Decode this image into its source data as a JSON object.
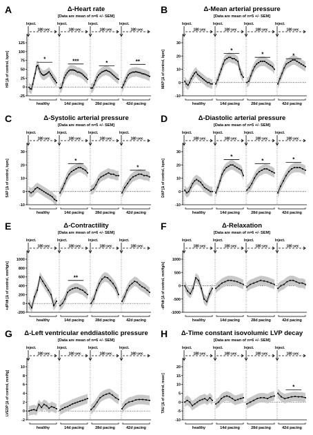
{
  "chart_data": [
    {
      "letter": "A",
      "title": "Δ-Heart rate",
      "subtitle": "[Data are mean of n=6 +/- SEM]",
      "type": "line",
      "ylabel": "HR [Δ of control, bpm]",
      "yticks": [
        "125",
        "100",
        "75",
        "50",
        "25",
        "0",
        "-25"
      ],
      "ylim": [
        -25,
        125
      ],
      "groups": [
        "healthy",
        "14d pacing",
        "28d pacing",
        "42d pacing"
      ],
      "inject_label": "Inject.",
      "interval_label": "180 sec",
      "means": [
        [
          -1,
          -5,
          -6,
          8,
          25,
          38,
          58,
          61,
          52,
          42,
          37,
          34,
          33,
          35,
          37,
          40,
          43,
          38,
          33,
          27,
          22,
          17,
          12
        ],
        [
          -3,
          -2,
          12,
          26,
          34,
          40,
          45,
          48,
          48,
          48,
          47,
          45,
          42,
          42,
          40,
          38,
          34,
          30,
          26,
          22
        ],
        [
          -3,
          -3,
          6,
          18,
          28,
          34,
          38,
          42,
          44,
          46,
          47,
          45,
          43,
          40,
          36,
          32,
          28,
          24,
          22
        ],
        [
          -2,
          6,
          16,
          26,
          34,
          38,
          40,
          42,
          42,
          43,
          42,
          41,
          40,
          38,
          37,
          36,
          34,
          32,
          30
        ]
      ],
      "sig": [
        {
          "group": 0,
          "label": "*",
          "y": 70
        },
        {
          "group": 1,
          "label": "***",
          "y": 65
        },
        {
          "group": 2,
          "label": "*",
          "y": 60
        },
        {
          "group": 3,
          "label": "**",
          "y": 64
        }
      ]
    },
    {
      "letter": "B",
      "title": "Δ-Mean arterial pressure",
      "subtitle": "[Data are mean of n=5 +/- SEM]",
      "type": "line",
      "ylabel": "MAP [Δ of control, bpm]",
      "yticks": [
        "30",
        "20",
        "10",
        "0",
        "-10"
      ],
      "ylim": [
        -10,
        30
      ],
      "groups": [
        "healthy",
        "14d pacing",
        "28d pacing",
        "42d pacing"
      ],
      "inject_label": "Inject.",
      "interval_label": "180 sec",
      "means": [
        [
          1,
          -1,
          -2,
          0,
          3,
          5,
          7,
          8,
          6,
          5,
          4,
          3,
          2,
          1,
          0,
          0,
          -1,
          -1
        ],
        [
          -1,
          2,
          6,
          10,
          14,
          17,
          18,
          19,
          19,
          18,
          18,
          17,
          16,
          10,
          6,
          4
        ],
        [
          0,
          1,
          5,
          9,
          12,
          14,
          15,
          16,
          16,
          16,
          15,
          14,
          13,
          12,
          10
        ],
        [
          -1,
          3,
          7,
          11,
          14,
          15,
          16,
          17,
          17,
          16,
          15,
          14,
          13,
          12
        ]
      ],
      "sig": [
        {
          "group": 1,
          "label": "*",
          "y": 22
        },
        {
          "group": 2,
          "label": "*",
          "y": 19
        },
        {
          "group": 3,
          "label": "*",
          "y": 18
        }
      ]
    },
    {
      "letter": "C",
      "title": "Δ-Systolic arterial pressure",
      "subtitle": "[Data are mean of n=5 +/- SEM]",
      "type": "line",
      "ylabel": "SAP [Δ of control, bpm]",
      "yticks": [
        "30",
        "20",
        "10",
        "0",
        "-10"
      ],
      "ylim": [
        -10,
        30
      ],
      "groups": [
        "healthy",
        "14d pacing",
        "28d pacing",
        "42d pacing"
      ],
      "inject_label": "Inject.",
      "interval_label": "180 sec",
      "means": [
        [
          0,
          -1,
          0,
          2,
          3,
          2,
          1,
          0,
          -1,
          -2,
          -3,
          -4,
          -6,
          -7
        ],
        [
          -1,
          2,
          6,
          10,
          13,
          15,
          16,
          17,
          18,
          18,
          17,
          16,
          14
        ],
        [
          1,
          2,
          5,
          9,
          11,
          12,
          13,
          14,
          13,
          13,
          12,
          12
        ],
        [
          -1,
          3,
          6,
          9,
          11,
          12,
          13,
          13,
          12,
          12,
          11
        ]
      ],
      "sig": [
        {
          "group": 1,
          "label": "*",
          "y": 21
        },
        {
          "group": 3,
          "label": "*",
          "y": 16
        }
      ]
    },
    {
      "letter": "D",
      "title": "Δ-Diastolic arterial pressure",
      "subtitle": "[Data are mean of n=5 +/- SEM]",
      "type": "line",
      "ylabel": "DAP [Δ of control, bpm]",
      "yticks": [
        "30",
        "20",
        "10",
        "0",
        "-10"
      ],
      "ylim": [
        -10,
        30
      ],
      "groups": [
        "healthy",
        "14d pacing",
        "28d pacing",
        "42d pacing"
      ],
      "inject_label": "Inject.",
      "interval_label": "180 sec",
      "means": [
        [
          1,
          -1,
          0,
          3,
          6,
          8,
          9,
          8,
          7,
          5,
          3,
          2,
          1,
          0,
          0
        ],
        [
          -1,
          3,
          8,
          13,
          16,
          18,
          19,
          20,
          20,
          19,
          18,
          17,
          16,
          12
        ],
        [
          1,
          3,
          6,
          10,
          13,
          15,
          16,
          17,
          17,
          16,
          15,
          14
        ],
        [
          -1,
          4,
          8,
          12,
          15,
          17,
          18,
          18,
          18,
          17,
          16
        ]
      ],
      "sig": [
        {
          "group": 1,
          "label": "*",
          "y": 24
        },
        {
          "group": 2,
          "label": "*",
          "y": 21
        },
        {
          "group": 3,
          "label": "*",
          "y": 22
        }
      ]
    },
    {
      "letter": "E",
      "title": "Δ-Contractility",
      "subtitle": "[Data are mean of n=6 +/- SEM]",
      "type": "line",
      "ylabel": "+dP/dt [Δ of control, mmHg/s]",
      "yticks": [
        "1000",
        "800",
        "600",
        "400",
        "200",
        "0",
        "-200"
      ],
      "ylim": [
        -200,
        1000
      ],
      "groups": [
        "healthy",
        "14d pacing",
        "28d pacing",
        "42d pacing"
      ],
      "inject_label": "Inject.",
      "interval_label": "180 sec",
      "means": [
        [
          0,
          -100,
          150,
          300,
          600,
          500,
          400,
          300,
          200,
          -50,
          50
        ],
        [
          -50,
          0,
          100,
          250,
          300,
          330,
          350,
          350,
          320,
          300,
          250,
          200
        ],
        [
          0,
          100,
          300,
          450,
          550,
          600,
          580,
          520,
          450,
          350,
          200
        ],
        [
          50,
          150,
          300,
          400,
          450,
          500,
          480,
          420,
          380,
          350,
          300,
          250
        ]
      ],
      "sig": [
        {
          "group": 1,
          "label": "**",
          "y": 520
        }
      ]
    },
    {
      "letter": "F",
      "title": "Δ-Relaxation",
      "subtitle": "[Data are mean of n=6 +/- SEM]",
      "type": "line",
      "ylabel": "-dP/dt [Δ of control, mmHg/s]",
      "yticks": [
        "1000",
        "500",
        "0",
        "-500",
        "-1000"
      ],
      "ylim": [
        -1000,
        1000
      ],
      "groups": [
        "healthy",
        "14d pacing",
        "28d pacing",
        "42d pacing"
      ],
      "inject_label": "Inject.",
      "interval_label": "180 sec",
      "means": [
        [
          0,
          -200,
          -300,
          -100,
          300,
          200,
          -100,
          -500,
          -600,
          -300,
          -100
        ],
        [
          -100,
          0,
          100,
          150,
          200,
          200,
          180,
          150,
          100,
          50
        ],
        [
          -50,
          50,
          100,
          150,
          200,
          180,
          150,
          100,
          50
        ],
        [
          -100,
          0,
          50,
          150,
          200,
          200,
          150,
          100,
          100,
          50
        ]
      ],
      "sig": []
    },
    {
      "letter": "G",
      "title": "Δ-Left ventricular enddiastolic pressure",
      "subtitle": "[Data are mean of n=6 +/- SEM]",
      "type": "line",
      "ylabel": "LVEDP [Δ of control, mmHg]",
      "yticks": [
        "10",
        "8",
        "6",
        "4",
        "2",
        "0",
        "-2"
      ],
      "ylim": [
        -2,
        10
      ],
      "groups": [
        "healthy",
        "14d pacing",
        "28d pacing",
        "42d pacing"
      ],
      "inject_label": "Inject.",
      "interval_label": "180 sec",
      "means": [
        [
          0,
          0.2,
          0.3,
          0.1,
          1.5,
          0.8,
          1.5,
          1.2,
          0.6,
          1.0,
          0.8,
          0.5
        ],
        [
          0.2,
          0.5,
          0.8,
          1.0,
          1.3,
          1.6,
          1.8,
          2.0,
          2.2,
          2.4,
          2.6,
          2.8
        ],
        [
          0.3,
          1.0,
          2.0,
          3.0,
          3.5,
          3.8,
          4.0,
          3.6,
          3.0,
          2.6
        ],
        [
          0.5,
          1.5,
          2.0,
          2.2,
          2.5,
          2.6,
          2.6,
          2.5,
          2.4
        ]
      ],
      "sig": []
    },
    {
      "letter": "H",
      "title": "Δ-Time constant isovolumic LVP decay",
      "subtitle": "[Data are mean of n=6 +/- SEM]",
      "type": "line",
      "ylabel": "TAU [Δ of control, msec]",
      "yticks": [
        "20",
        "15",
        "10",
        "5",
        "0",
        "-5",
        "-10"
      ],
      "ylim": [
        -10,
        20
      ],
      "groups": [
        "healthy",
        "14d pacing",
        "28d pacing",
        "42d pacing"
      ],
      "inject_label": "Inject.",
      "interval_label": "180 sec",
      "means": [
        [
          0,
          1,
          0,
          -2,
          -1,
          0,
          1,
          1.5,
          2,
          1,
          2.5,
          1
        ],
        [
          -1,
          0,
          2,
          3,
          3.5,
          3,
          2,
          1,
          1.5,
          2,
          2.5
        ],
        [
          -1,
          0,
          1,
          2,
          2.5,
          2.5,
          2,
          3,
          3.5
        ],
        [
          5,
          3,
          2,
          2.5,
          3,
          3.2,
          3,
          3,
          2.5
        ]
      ],
      "sig": [
        {
          "group": 3,
          "label": "*",
          "y": 7
        }
      ]
    }
  ]
}
